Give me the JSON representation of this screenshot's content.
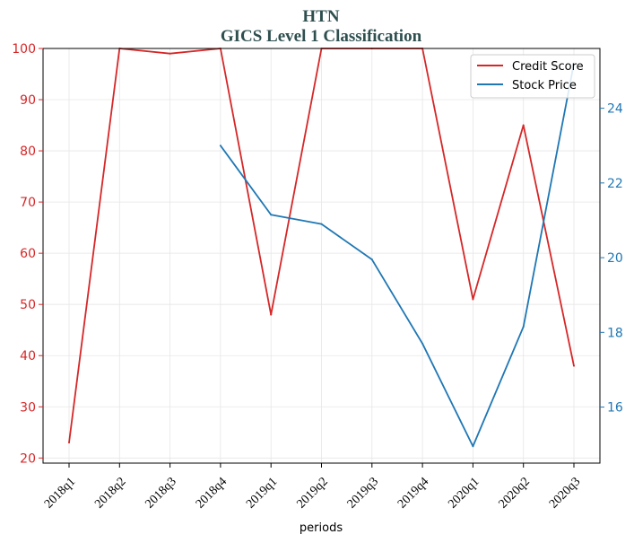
{
  "chart_data": {
    "type": "line",
    "title": "HTN",
    "subtitle": "GICS Level 1 Classification",
    "xlabel": "periods",
    "ylabel": "",
    "y2label": "",
    "categories": [
      "2018q1",
      "2018q2",
      "2018q3",
      "2018q4",
      "2019q1",
      "2019q2",
      "2019q3",
      "2019q4",
      "2020q1",
      "2020q2",
      "2020q3"
    ],
    "ylim": [
      19,
      100
    ],
    "y2lim": [
      14.5,
      25.6
    ],
    "yticks": [
      20,
      30,
      40,
      50,
      60,
      70,
      80,
      90,
      100
    ],
    "y2ticks": [
      16,
      18,
      20,
      22,
      24
    ],
    "grid": true,
    "legend_position": "top-right",
    "series": [
      {
        "name": "Credit Score",
        "axis": "left",
        "color": "#d62728",
        "values": [
          23,
          100,
          99,
          100,
          48,
          100,
          100,
          100,
          51,
          85,
          38
        ]
      },
      {
        "name": "Stock Price",
        "axis": "right",
        "color": "#1f77b4",
        "values": [
          null,
          null,
          null,
          23.0,
          21.15,
          20.9,
          19.95,
          17.7,
          14.95,
          18.15,
          25.2
        ]
      }
    ]
  }
}
